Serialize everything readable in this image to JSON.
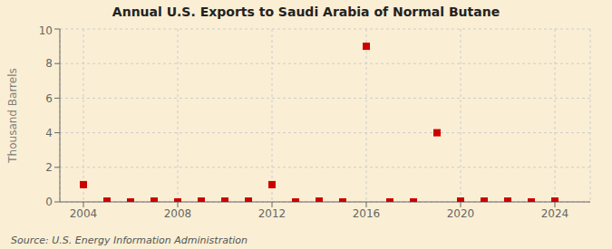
{
  "chart_data": {
    "type": "scatter",
    "title": "Annual U.S. Exports to Saudi Arabia of Normal Butane",
    "ylabel": "Thousand Barrels",
    "annotations": [
      "Source: U.S. Energy Information Administration"
    ],
    "x": [
      2004,
      2005,
      2006,
      2007,
      2008,
      2009,
      2010,
      2011,
      2012,
      2013,
      2014,
      2015,
      2016,
      2017,
      2018,
      2019,
      2020,
      2021,
      2022,
      2023,
      2024
    ],
    "values": [
      1,
      0.05,
      0,
      0.05,
      0,
      0.05,
      0.05,
      0.05,
      1,
      0,
      0.05,
      0,
      9,
      0,
      0,
      4,
      0.05,
      0.05,
      0.05,
      0,
      0.05
    ],
    "color": "#cc0000",
    "marker": "square",
    "xlim": [
      2003.0,
      2025.5
    ],
    "ylim": [
      0,
      10
    ],
    "xticks": [
      2004,
      2008,
      2012,
      2016,
      2020,
      2024
    ],
    "yticks": [
      0,
      2,
      4,
      6,
      8,
      10
    ],
    "grid": true
  }
}
